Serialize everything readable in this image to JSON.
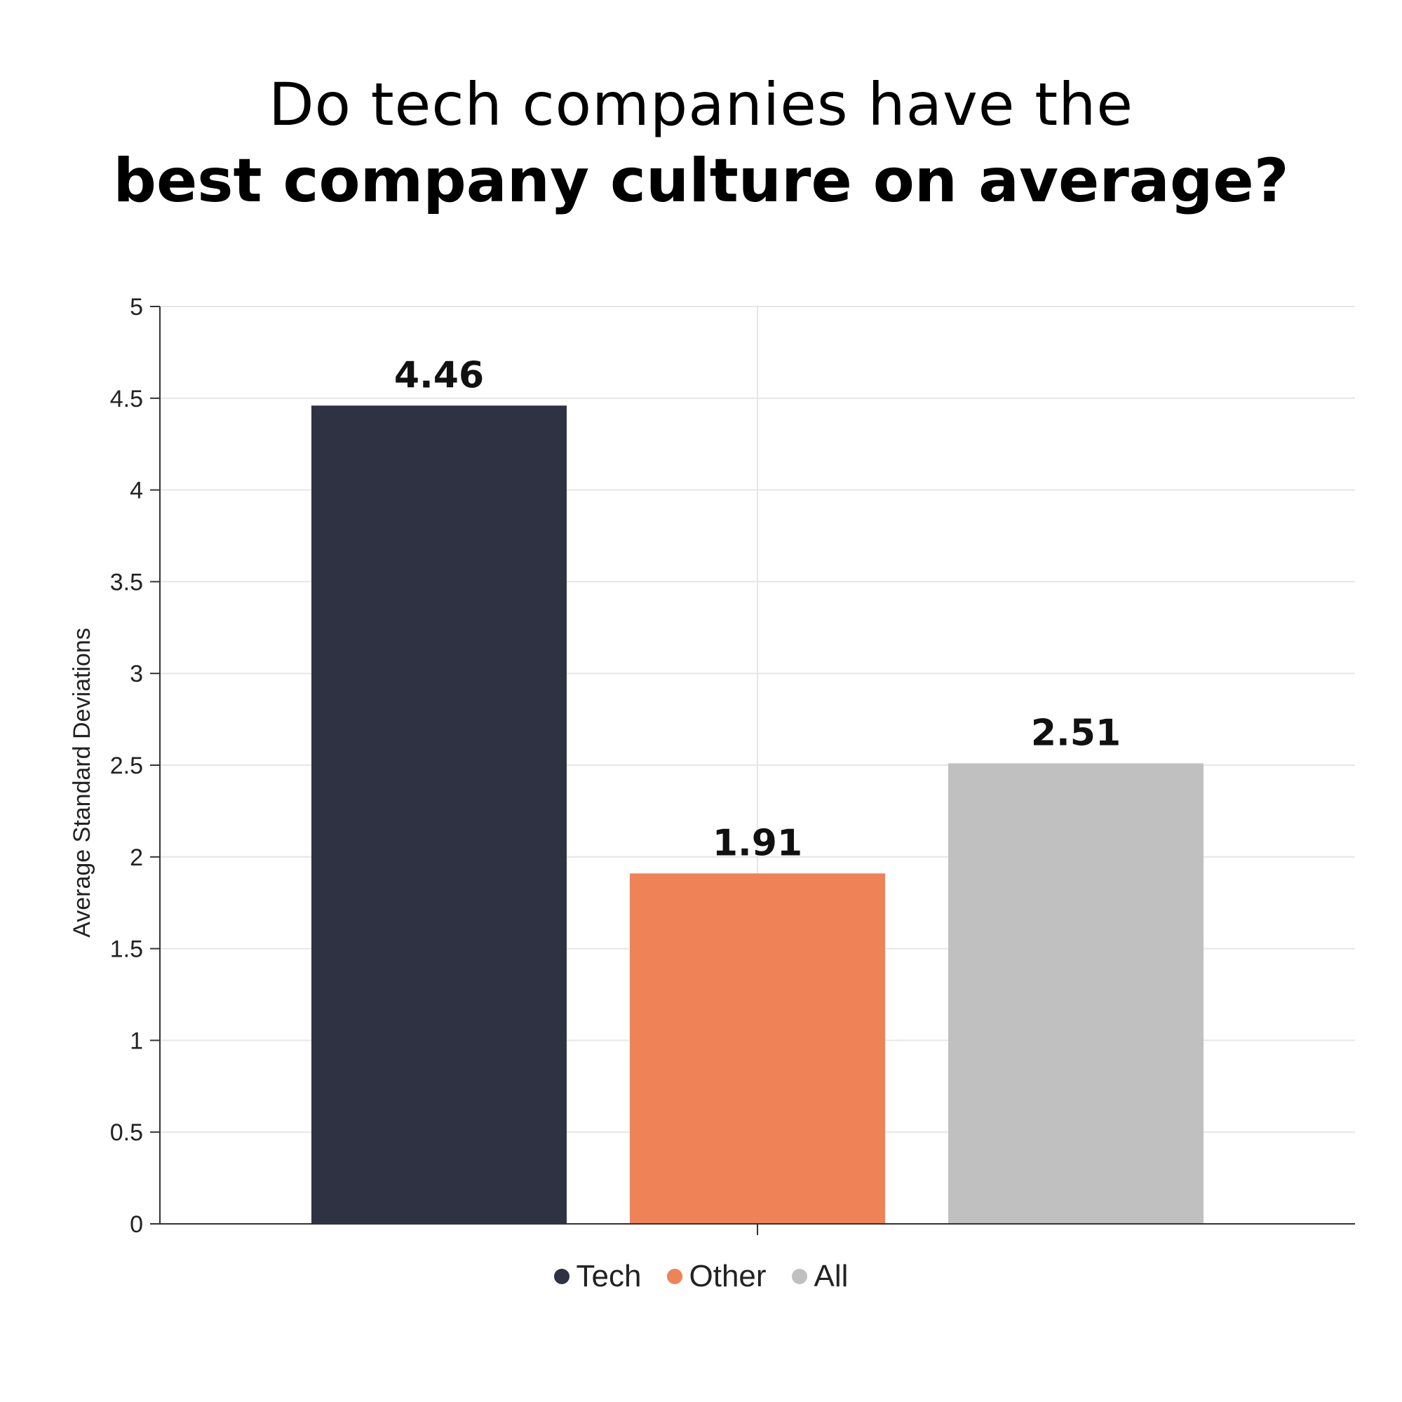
{
  "title": {
    "line1": "Do tech companies have the",
    "line2": "best company culture on average?"
  },
  "chart_data": {
    "type": "bar",
    "title": "Do tech companies have the best company culture on average?",
    "ylabel": "Average Standard Deviations",
    "xlabel": "",
    "ylim": [
      0,
      5
    ],
    "yticks": [
      "0",
      "0.5",
      "1",
      "1.5",
      "2",
      "2.5",
      "3",
      "3.5",
      "4",
      "4.5",
      "5"
    ],
    "grid": true,
    "legend_position": "bottom-center",
    "series": [
      {
        "name": "Tech",
        "value": 4.46,
        "label": "4.46",
        "color": "#2e3242"
      },
      {
        "name": "Other",
        "value": 1.91,
        "label": "1.91",
        "color": "#ef8357"
      },
      {
        "name": "All",
        "value": 2.51,
        "label": "2.51",
        "color": "#bfc0bf"
      }
    ]
  }
}
